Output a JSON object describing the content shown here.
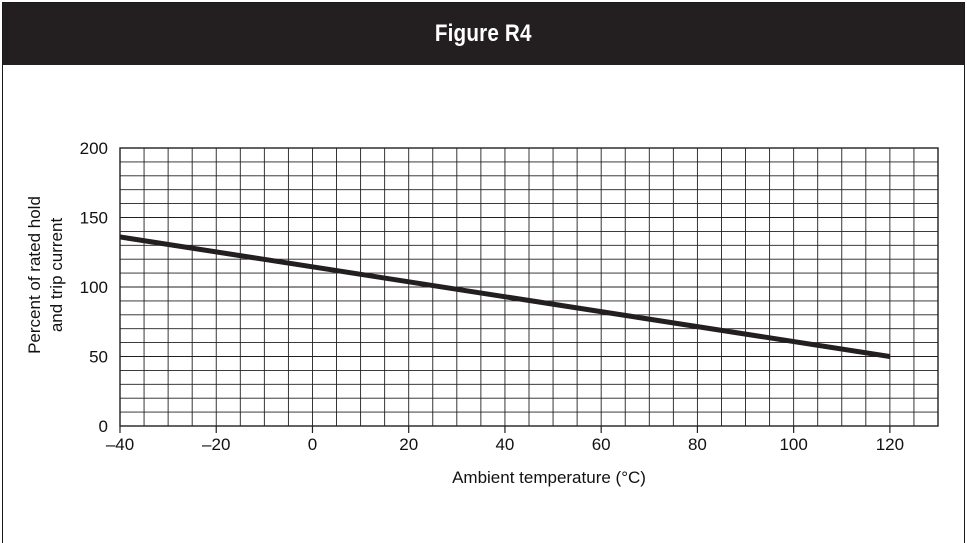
{
  "figure": {
    "title": "Figure R4"
  },
  "colors": {
    "header_bg": "#231f20",
    "header_text": "#ffffff",
    "line": "#231f20",
    "grid": "#231f20"
  },
  "chart_data": {
    "type": "line",
    "title": "",
    "xlabel": "Ambient temperature (°C)",
    "ylabel_lines": [
      "Percent of rated hold",
      "and trip current"
    ],
    "xlim": [
      -40,
      130
    ],
    "ylim": [
      0,
      200
    ],
    "x_ticks": [
      -40,
      -20,
      0,
      20,
      40,
      60,
      80,
      100,
      120
    ],
    "x_tick_labels": [
      "–40",
      "–20",
      "0",
      "20",
      "40",
      "60",
      "80",
      "100",
      "120"
    ],
    "y_ticks": [
      0,
      50,
      100,
      150,
      200
    ],
    "y_tick_labels": [
      "0",
      "50",
      "100",
      "150",
      "200"
    ],
    "x_minor_step": 5,
    "y_minor_step": 10,
    "grid": true,
    "series": [
      {
        "x": [
          -40,
          120
        ],
        "y": [
          136,
          50
        ]
      }
    ]
  }
}
